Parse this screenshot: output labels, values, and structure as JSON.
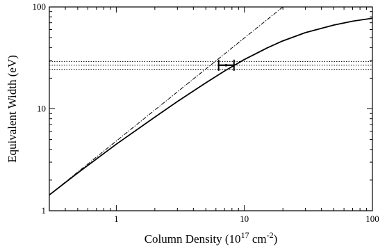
{
  "chart_data": {
    "type": "line",
    "title": "",
    "xlabel": {
      "base": "Column Density (10",
      "exp1": "17",
      "mid": " cm",
      "exp2": "-2",
      "end": ")"
    },
    "ylabel": "Equivalent Width (eV)",
    "xscale": "log",
    "yscale": "log",
    "xlim": [
      0.3,
      100
    ],
    "ylim": [
      1,
      100
    ],
    "grid": false,
    "x_ticks": [
      {
        "value": 1,
        "label": "1"
      },
      {
        "value": 10,
        "label": "10"
      },
      {
        "value": 100,
        "label": "100"
      }
    ],
    "y_ticks": [
      {
        "value": 1,
        "label": "1"
      },
      {
        "value": 10,
        "label": "10"
      },
      {
        "value": 100,
        "label": "100"
      }
    ],
    "series": [
      {
        "style": "solid",
        "color": "#000000",
        "x": [
          0.3,
          0.5,
          1,
          2,
          3,
          5,
          7,
          10,
          15,
          20,
          30,
          50,
          70,
          100
        ],
        "y": [
          1.43,
          2.35,
          4.5,
          8.3,
          11.8,
          18.0,
          23.5,
          30.5,
          39.5,
          46.5,
          56.0,
          66.5,
          72.5,
          77.5
        ]
      },
      {
        "style": "dash-dot",
        "color": "#000000",
        "x": [
          0.3,
          20
        ],
        "y": [
          1.43,
          100
        ]
      }
    ],
    "horizontal_lines": [
      {
        "y": 24.5,
        "style": "dotted"
      },
      {
        "y": 26.8,
        "style": "dotted"
      },
      {
        "y": 29.2,
        "style": "dotted"
      }
    ],
    "error_bar": {
      "x": 7.2,
      "y": 26.8,
      "xmin": 6.3,
      "xmax": 8.3
    }
  }
}
